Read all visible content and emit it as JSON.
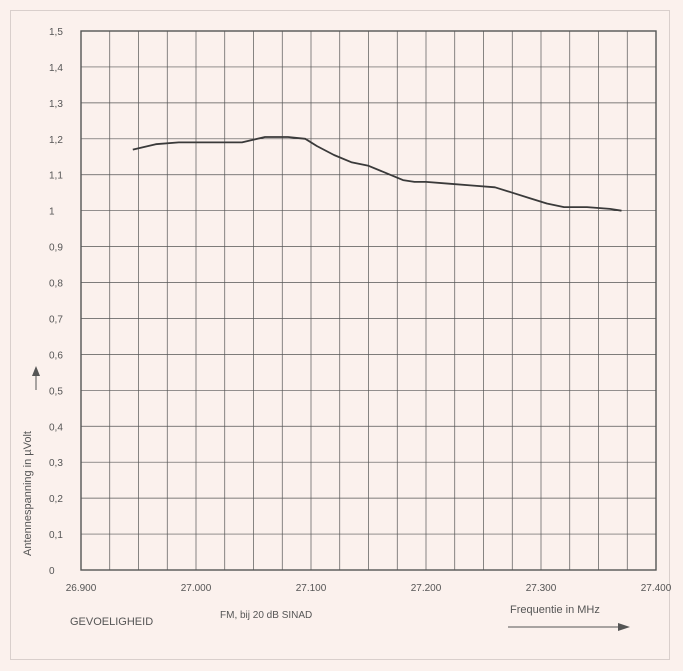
{
  "colors": {
    "background": "#fbf1ed",
    "grid": "#555555",
    "line": "#3a3a3a",
    "text": "#555555"
  },
  "footer": {
    "left_label": "GEVOELIGHEID",
    "center_label": "FM, bij 20 dB SINAD"
  },
  "chart_data": {
    "type": "line",
    "title": "",
    "xlabel": "Frequentie in MHz",
    "ylabel": "Antennespanning in µVolt",
    "xlim": [
      26.9,
      27.4
    ],
    "ylim": [
      0,
      1.5
    ],
    "grid": true,
    "x_ticks": [
      "26.900",
      "27.000",
      "27.100",
      "27.200",
      "27.300",
      "27.400"
    ],
    "y_ticks": [
      "0",
      "0,1",
      "0,2",
      "0,3",
      "0,4",
      "0,5",
      "0,6",
      "0,7",
      "0,8",
      "0,9",
      "1",
      "1,1",
      "1,2",
      "1,3",
      "1,4",
      "1,5"
    ],
    "series": [
      {
        "x": [
          26.945,
          26.965,
          26.985,
          27.0,
          27.02,
          27.04,
          27.06,
          27.08,
          27.095,
          27.105,
          27.12,
          27.135,
          27.15,
          27.165,
          27.18,
          27.19,
          27.2,
          27.22,
          27.24,
          27.26,
          27.275,
          27.29,
          27.305,
          27.32,
          27.34,
          27.36,
          27.37
        ],
        "y": [
          1.17,
          1.185,
          1.19,
          1.19,
          1.19,
          1.19,
          1.205,
          1.205,
          1.2,
          1.18,
          1.155,
          1.135,
          1.125,
          1.105,
          1.085,
          1.08,
          1.08,
          1.075,
          1.07,
          1.065,
          1.05,
          1.035,
          1.02,
          1.01,
          1.01,
          1.005,
          1.0
        ]
      }
    ]
  }
}
